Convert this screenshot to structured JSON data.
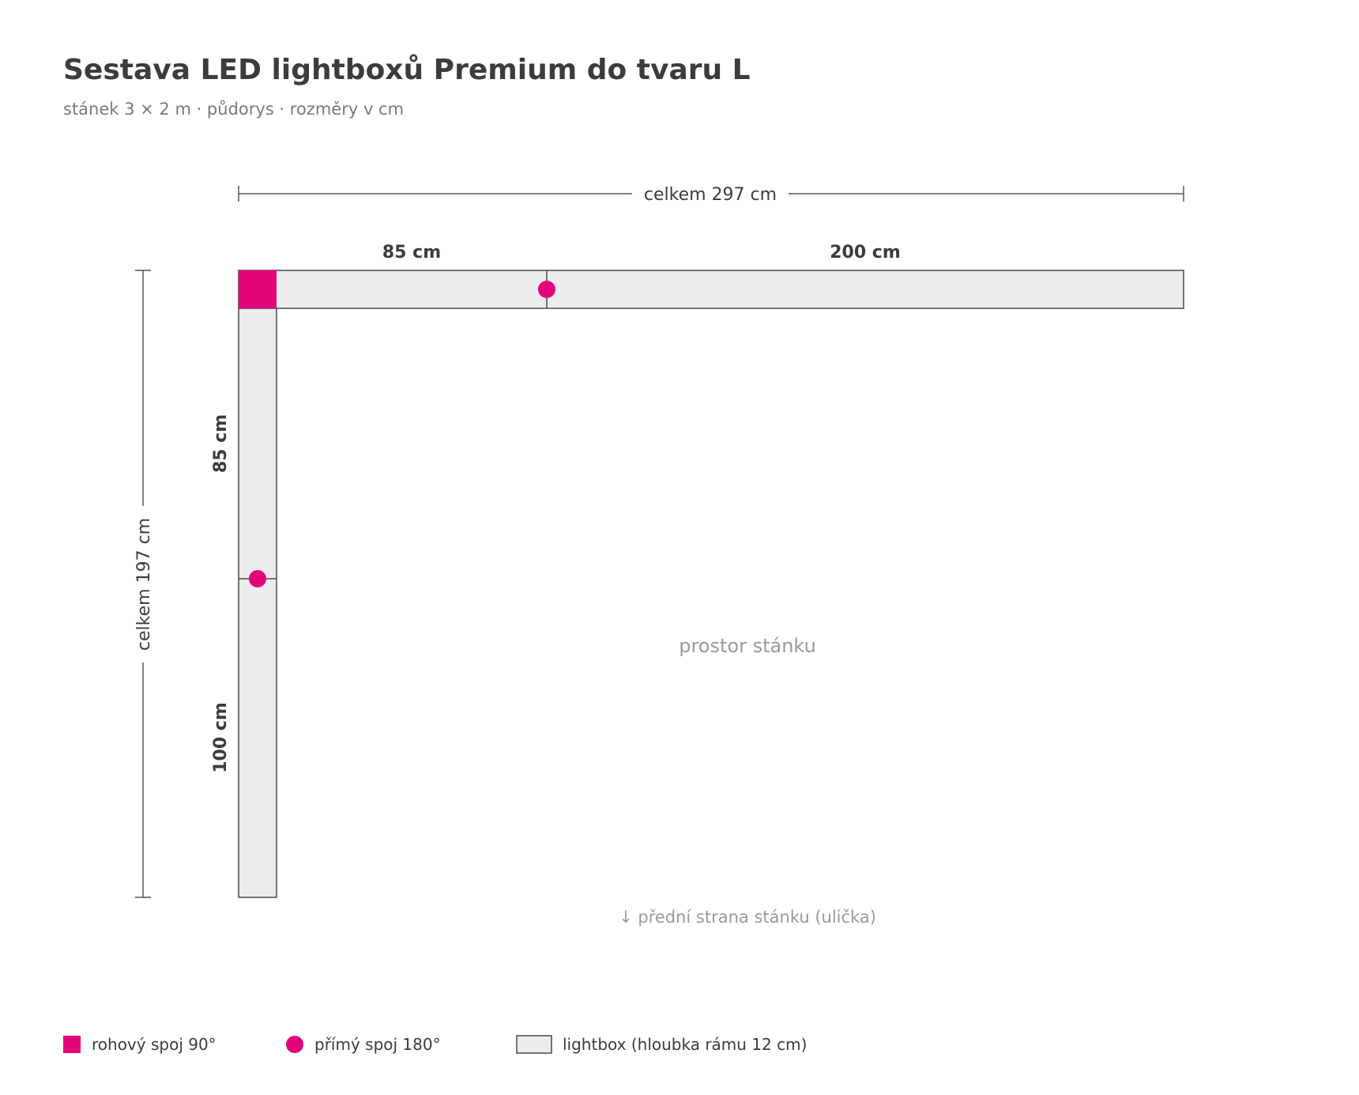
{
  "header": {
    "title": "Sestava LED lightboxů Premium do tvaru L",
    "subtitle": "stánek 3 × 2 m · půdorys · rozměry v cm"
  },
  "dimensions": {
    "top_total": "celkem 297 cm",
    "left_total": "celkem 197 cm",
    "top_segments": [
      "85 cm",
      "200 cm"
    ],
    "left_segments": [
      "85 cm",
      "100 cm"
    ]
  },
  "floorplan": {
    "area_label": "prostor stánku",
    "front_label": "↓ přední strana stánku (ulička)"
  },
  "legend": {
    "corner": "rohový spoj 90°",
    "straight": "přímý spoj 180°",
    "lightbox": "lightbox (hloubka rámu 12 cm)"
  },
  "colors": {
    "accent": "#e2057a",
    "lightbox_fill": "#ececec",
    "lightbox_stroke": "#4a4a4a",
    "text": "#3c3c3c",
    "muted": "#9a9a9a"
  }
}
